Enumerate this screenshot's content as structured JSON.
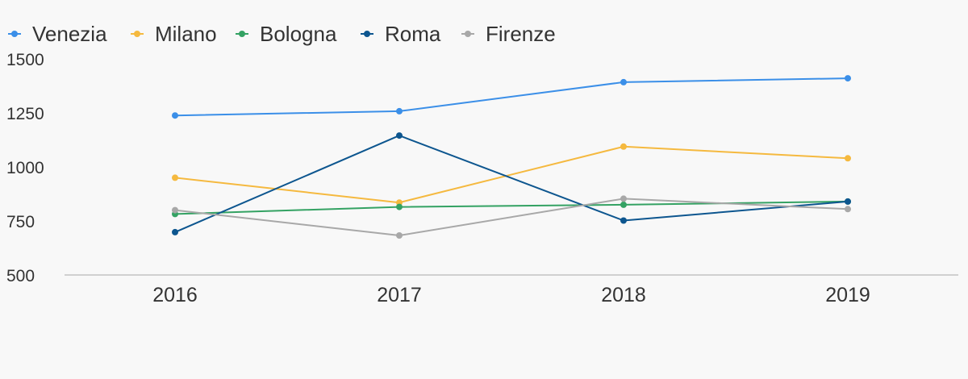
{
  "chart_data": {
    "type": "line",
    "title": "",
    "xlabel": "",
    "ylabel": "",
    "x": [
      "2016",
      "2017",
      "2018",
      "2019"
    ],
    "ylim": [
      500,
      1500
    ],
    "yticks": [
      "500",
      "750",
      "1000",
      "1250",
      "1500"
    ],
    "grid": false,
    "legend_position": "top-left",
    "series": [
      {
        "name": "Venezia",
        "color": "#3b8fe8",
        "values": [
          1238,
          1258,
          1392,
          1410
        ]
      },
      {
        "name": "Milano",
        "color": "#f5b93f",
        "values": [
          950,
          835,
          1094,
          1040
        ]
      },
      {
        "name": "Bologna",
        "color": "#34a263",
        "values": [
          782,
          815,
          825,
          840
        ]
      },
      {
        "name": "Roma",
        "color": "#0d568f",
        "values": [
          698,
          1145,
          752,
          840
        ]
      },
      {
        "name": "Firenze",
        "color": "#a8a8a8",
        "values": [
          800,
          683,
          853,
          805
        ]
      }
    ]
  }
}
